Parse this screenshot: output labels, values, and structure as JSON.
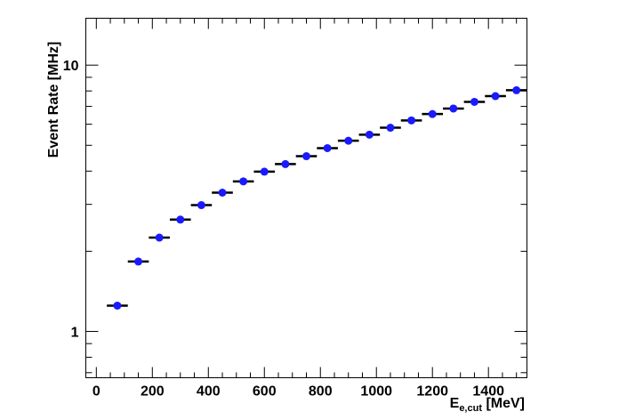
{
  "chart_data": {
    "type": "scatter",
    "title": "",
    "xlabel": {
      "main": "E",
      "sub": "e,cut",
      "unit": " [MeV]"
    },
    "ylabel": "Event Rate [MHz]",
    "xlim": [
      -37.5,
      1537.5
    ],
    "ylim": [
      0.67,
      15
    ],
    "yscale": "log",
    "grid": false,
    "legend": "none",
    "marker_color": "#1a1aff",
    "bin_width": 75,
    "x_ticks": [
      0,
      200,
      400,
      600,
      800,
      1000,
      1200,
      1400
    ],
    "x_tick_labels": [
      "0",
      "200",
      "400",
      "600",
      "800",
      "1000",
      "1200",
      "1400"
    ],
    "y_major_ticks": [
      1,
      10
    ],
    "y_tick_labels": [
      "1",
      "10"
    ],
    "series": [
      {
        "x": [
          75,
          150,
          225,
          300,
          375,
          450,
          525,
          600,
          675,
          750,
          825,
          900,
          975,
          1050,
          1125,
          1200,
          1275,
          1350,
          1425,
          1500
        ],
        "y": [
          1.25,
          1.83,
          2.25,
          2.63,
          2.98,
          3.32,
          3.66,
          3.98,
          4.25,
          4.55,
          4.88,
          5.2,
          5.48,
          5.82,
          6.2,
          6.55,
          6.87,
          7.28,
          7.65,
          8.05
        ]
      }
    ]
  }
}
